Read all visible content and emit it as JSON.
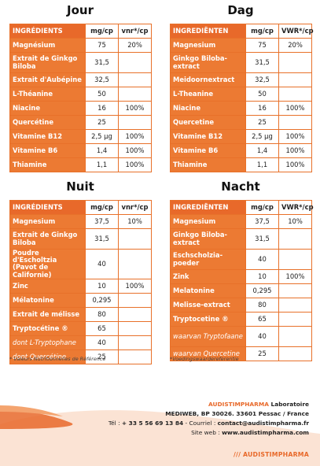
{
  "jour": {
    "title": "Jour",
    "headers": [
      "INGRÉDIENTS",
      "mg/cp",
      "vnr*/cp"
    ],
    "rows": [
      {
        "name": "Magnésium",
        "mg": "75",
        "vnr": "20%"
      },
      {
        "name": "Extrait de Ginkgo Biloba",
        "mg": "31,5",
        "vnr": ""
      },
      {
        "name": "Extrait d'Aubépine",
        "mg": "32,5",
        "vnr": ""
      },
      {
        "name": "L-Théanine",
        "mg": "50",
        "vnr": ""
      },
      {
        "name": "Niacine",
        "mg": "16",
        "vnr": "100%"
      },
      {
        "name": "Quercétine",
        "mg": "25",
        "vnr": ""
      },
      {
        "name": "Vitamine B12",
        "mg": "2,5 µg",
        "vnr": "100%"
      },
      {
        "name": "Vitamine B6",
        "mg": "1,4",
        "vnr": "100%"
      },
      {
        "name": "Thiamine",
        "mg": "1,1",
        "vnr": "100%"
      }
    ]
  },
  "dag": {
    "title": "Dag",
    "headers": [
      "INGREDIËNTEN",
      "mg/cp",
      "VWR*/cp"
    ],
    "rows": [
      {
        "name": "Magnesium",
        "mg": "75",
        "vnr": "20%"
      },
      {
        "name": "Ginkgo Biloba-extract",
        "mg": "31,5",
        "vnr": ""
      },
      {
        "name": "Meidoornextract",
        "mg": "32,5",
        "vnr": ""
      },
      {
        "name": "L-Theanine",
        "mg": "50",
        "vnr": ""
      },
      {
        "name": "Niacine",
        "mg": "16",
        "vnr": "100%"
      },
      {
        "name": "Quercetine",
        "mg": "25",
        "vnr": ""
      },
      {
        "name": "Vitamine B12",
        "mg": "2,5 µg",
        "vnr": "100%"
      },
      {
        "name": "Vitamine B6",
        "mg": "1,4",
        "vnr": "100%"
      },
      {
        "name": "Thiamine",
        "mg": "1,1",
        "vnr": "100%"
      }
    ]
  },
  "nuit": {
    "title": "Nuit",
    "headers": [
      "INGRÉDIENTS",
      "mg/cp",
      "vnr*/cp"
    ],
    "rows": [
      {
        "name": "Magnesium",
        "mg": "37,5",
        "vnr": "10%"
      },
      {
        "name": "Extrait de Ginkgo Biloba",
        "mg": "31,5",
        "vnr": ""
      },
      {
        "name": "Poudre d'Escholtzia (Pavot de Californie)",
        "mg": "40",
        "vnr": ""
      },
      {
        "name": "Zinc",
        "mg": "10",
        "vnr": "100%"
      },
      {
        "name": "Mélatonine",
        "mg": "0,295",
        "vnr": ""
      },
      {
        "name": "Extrait de mélisse",
        "mg": "80",
        "vnr": ""
      },
      {
        "name": "Tryptocétine ®",
        "mg": "65",
        "vnr": ""
      },
      {
        "name": "dont L-Tryptophane",
        "mg": "40",
        "vnr": ""
      },
      {
        "name": "dont Quercétine",
        "mg": "25",
        "vnr": ""
      }
    ]
  },
  "nacht": {
    "title": "Nacht",
    "headers": [
      "INGREDIËNTEN",
      "mg/cp",
      "VWR*/cp"
    ],
    "rows": [
      {
        "name": "Magnesium",
        "mg": "37,5",
        "vnr": "10%"
      },
      {
        "name": "Ginkgo Biloba-extract",
        "mg": "31,5",
        "vnr": ""
      },
      {
        "name": "Eschscholzia-poeder",
        "mg": "40",
        "vnr": ""
      },
      {
        "name": "Zink",
        "mg": "10",
        "vnr": "100%"
      },
      {
        "name": "Melatonine",
        "mg": "0,295",
        "vnr": ""
      },
      {
        "name": "Melisse-extract",
        "mg": "80",
        "vnr": ""
      },
      {
        "name": "Tryptocetine ®",
        "mg": "65",
        "vnr": ""
      },
      {
        "name": "waarvan Tryptofaane",
        "mg": "40",
        "vnr": ""
      },
      {
        "name": "waarvan Quercetine",
        "mg": "25",
        "vnr": ""
      }
    ]
  },
  "footnotes": {
    "fr": "* Valeurs Nutritionnelles de Référence",
    "nl": "*Voedingswaardereferentie"
  },
  "company": {
    "brand": "AUDISTIMPHARMA",
    "brand_suffix": "Laboratoire",
    "address": "MEDIWEB, BP 30026. 33601 Pessac / France",
    "phone_label": "Tél :",
    "phone": "+ 33 5 56 69 13 84",
    "mail_label": "- Courriel :",
    "mail": "contact@audistimpharma.fr",
    "web_label": "Site web :",
    "web": "www.audistimpharma.com"
  },
  "logo": {
    "text": "/// AUDISTIMPHARMA"
  },
  "colors": {
    "accent": "#e8692a",
    "cell_orange": "#ec7a33"
  }
}
